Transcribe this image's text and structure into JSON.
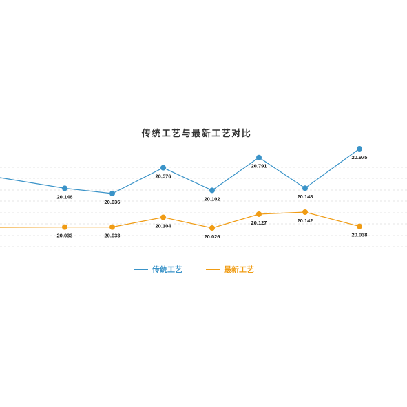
{
  "chart_data": {
    "type": "line",
    "title": "传统工艺与最新工艺对比",
    "xlabel": "",
    "ylabel": "",
    "grid": true,
    "legend_position": "bottom",
    "series": [
      {
        "name": "传统工艺",
        "color": "#3a93c8",
        "values": [
          20.146,
          20.036,
          20.576,
          20.102,
          20.791,
          20.148,
          20.975
        ],
        "labels": [
          "20.146",
          "20.036",
          "20.576",
          "20.102",
          "20.791",
          "20.148",
          "20.975"
        ]
      },
      {
        "name": "最新工艺",
        "color": "#f09c14",
        "values": [
          20.033,
          20.033,
          20.104,
          20.026,
          20.127,
          20.142,
          20.038
        ],
        "labels": [
          "20.033",
          "20.033",
          "20.104",
          "20.026",
          "20.127",
          "20.142",
          "20.038"
        ]
      }
    ]
  }
}
